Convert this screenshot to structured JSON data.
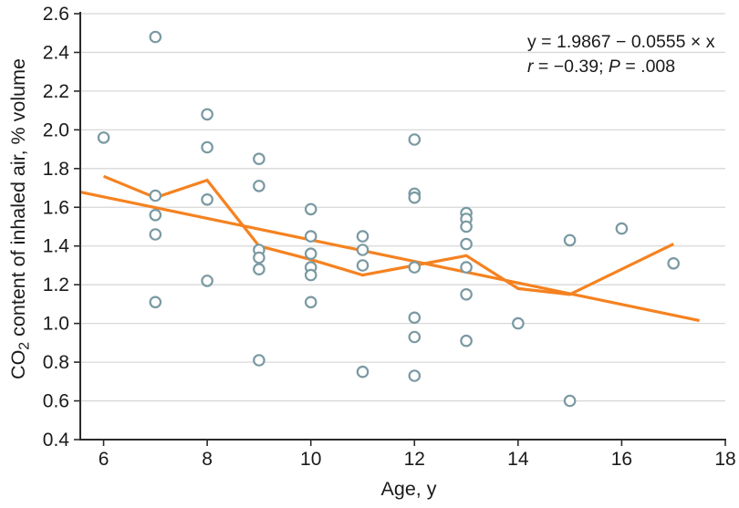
{
  "figure": {
    "background": "#FFFFFF",
    "description": "Scatter plot of CO2 content of inhaled air versus age with linear regression line and observed trend line"
  },
  "chart_data": {
    "type": "scatter",
    "title": "",
    "xlabel": "Age, y",
    "ylabel": {
      "pre": "CO",
      "sub": "2",
      "post": " content of inhaled air, % volume"
    },
    "xlim": [
      5.55,
      18
    ],
    "ylim": [
      0.4,
      2.6
    ],
    "xticks": [
      6,
      8,
      10,
      12,
      14,
      16,
      18
    ],
    "yticks": [
      0.4,
      0.6,
      0.8,
      1.0,
      1.2,
      1.4,
      1.6,
      1.8,
      2.0,
      2.2,
      2.4,
      2.6
    ],
    "ytick_labels": [
      "0.4",
      "0.6",
      "0.8",
      "1.0",
      "1.2",
      "1.4",
      "1.6",
      "1.8",
      "2.0",
      "2.2",
      "2.4",
      "2.6"
    ],
    "grid": true,
    "legend_position": "none",
    "annotation": {
      "equation": "y = 1.9867 − 0.0555 × x",
      "r_symbol": "r",
      "r_rest": " = −0.39; ",
      "p_symbol": "P",
      "p_rest": " = .008"
    },
    "series": [
      {
        "name": "observations",
        "type": "scatter",
        "marker": "open-circle",
        "color": "#7A99A2",
        "points": [
          [
            6,
            1.96
          ],
          [
            7,
            2.48
          ],
          [
            7,
            1.66
          ],
          [
            7,
            1.56
          ],
          [
            7,
            1.46
          ],
          [
            7,
            1.11
          ],
          [
            8,
            2.08
          ],
          [
            8,
            1.91
          ],
          [
            8,
            1.64
          ],
          [
            8,
            1.22
          ],
          [
            9,
            1.85
          ],
          [
            9,
            1.71
          ],
          [
            9,
            1.38
          ],
          [
            9,
            1.34
          ],
          [
            9,
            1.28
          ],
          [
            9,
            0.81
          ],
          [
            10,
            1.59
          ],
          [
            10,
            1.45
          ],
          [
            10,
            1.36
          ],
          [
            10,
            1.29
          ],
          [
            10,
            1.25
          ],
          [
            10,
            1.11
          ],
          [
            11,
            1.45
          ],
          [
            11,
            1.38
          ],
          [
            11,
            1.3
          ],
          [
            11,
            0.75
          ],
          [
            12,
            1.95
          ],
          [
            12,
            1.67
          ],
          [
            12,
            1.65
          ],
          [
            12,
            1.29
          ],
          [
            12,
            1.03
          ],
          [
            12,
            0.93
          ],
          [
            12,
            0.73
          ],
          [
            13,
            1.57
          ],
          [
            13,
            1.54
          ],
          [
            13,
            1.5
          ],
          [
            13,
            1.41
          ],
          [
            13,
            1.29
          ],
          [
            13,
            1.15
          ],
          [
            13,
            0.91
          ],
          [
            14,
            1.0
          ],
          [
            15,
            1.43
          ],
          [
            15,
            0.6
          ],
          [
            16,
            1.49
          ],
          [
            17,
            1.31
          ]
        ]
      },
      {
        "name": "regression-line",
        "type": "line",
        "color": "#F58220",
        "points": [
          [
            5.56,
            1.678
          ],
          [
            17.5,
            1.015
          ]
        ]
      },
      {
        "name": "trend-line",
        "type": "line",
        "color": "#F58220",
        "points": [
          [
            6,
            1.76
          ],
          [
            7,
            1.65
          ],
          [
            8,
            1.74
          ],
          [
            9,
            1.4
          ],
          [
            10,
            1.33
          ],
          [
            11,
            1.25
          ],
          [
            12,
            1.3
          ],
          [
            13,
            1.35
          ],
          [
            14,
            1.18
          ],
          [
            15,
            1.15
          ],
          [
            17,
            1.41
          ]
        ]
      }
    ],
    "colors": {
      "marker": "#7A99A2",
      "marker_fill": "#FFFFFF",
      "line": "#F58220",
      "grid": "#D8D8D8",
      "axis": "#2B2B2B",
      "text": "#1A1A1A"
    }
  }
}
